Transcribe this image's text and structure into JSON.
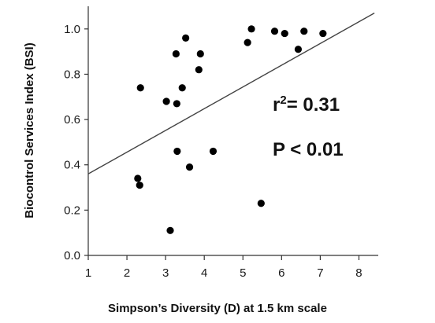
{
  "chart_data": {
    "type": "scatter",
    "title": "",
    "xlabel": "Simpson’s Diversity (D) at 1.5 km scale",
    "ylabel": "Biocontrol Services Index (BSI)",
    "xlim": [
      1,
      8.5
    ],
    "ylim": [
      0,
      1.1
    ],
    "x_ticks": [
      1,
      2,
      3,
      4,
      5,
      6,
      7,
      8
    ],
    "x_tick_labels": [
      "1",
      "2",
      "3",
      "4",
      "5",
      "6",
      "7",
      "8"
    ],
    "y_ticks": [
      0,
      0.2,
      0.4,
      0.6,
      0.8,
      1.0
    ],
    "y_tick_labels": [
      "0.0",
      "0.2",
      "0.4",
      "0.6",
      "0.8",
      "1.0"
    ],
    "grid": false,
    "points": [
      {
        "x": 2.28,
        "y": 0.34
      },
      {
        "x": 2.33,
        "y": 0.31
      },
      {
        "x": 2.35,
        "y": 0.74
      },
      {
        "x": 3.02,
        "y": 0.68
      },
      {
        "x": 3.12,
        "y": 0.11
      },
      {
        "x": 3.27,
        "y": 0.89
      },
      {
        "x": 3.29,
        "y": 0.67
      },
      {
        "x": 3.3,
        "y": 0.46
      },
      {
        "x": 3.43,
        "y": 0.74
      },
      {
        "x": 3.52,
        "y": 0.96
      },
      {
        "x": 3.62,
        "y": 0.39
      },
      {
        "x": 3.86,
        "y": 0.82
      },
      {
        "x": 3.9,
        "y": 0.89
      },
      {
        "x": 4.23,
        "y": 0.46
      },
      {
        "x": 5.12,
        "y": 0.94
      },
      {
        "x": 5.22,
        "y": 1.0
      },
      {
        "x": 5.47,
        "y": 0.23
      },
      {
        "x": 5.82,
        "y": 0.99
      },
      {
        "x": 6.08,
        "y": 0.98
      },
      {
        "x": 6.43,
        "y": 0.91
      },
      {
        "x": 6.58,
        "y": 0.99
      },
      {
        "x": 7.07,
        "y": 0.98
      }
    ],
    "regression_line": {
      "x": [
        1,
        8.4
      ],
      "y": [
        0.36,
        1.07
      ]
    },
    "annotations": {
      "r_squared_base": "r",
      "r_squared_exponent": "2",
      "r_squared_value": "= 0.31",
      "p_value": "P < 0.01"
    },
    "colors": {
      "points": "#000000",
      "line": "#444444",
      "axes": "#333333"
    }
  }
}
